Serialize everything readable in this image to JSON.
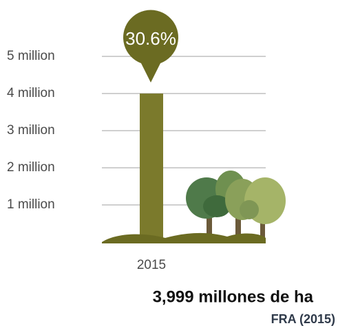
{
  "chart_data": {
    "type": "bar",
    "categories": [
      "2015"
    ],
    "values": [
      3.999
    ],
    "color": "#7b7a2c",
    "ylim": [
      0,
      5
    ],
    "yticks": [
      {
        "value": 1,
        "label": "1 million"
      },
      {
        "value": 2,
        "label": "2 million"
      },
      {
        "value": 3,
        "label": "3 million"
      },
      {
        "value": 4,
        "label": "4 million"
      },
      {
        "value": 5,
        "label": "5 million"
      }
    ],
    "grid": true,
    "bubble_annotation": "30.6%",
    "annotation": "3,999 millones de ha",
    "source": "FRA (2015)"
  }
}
